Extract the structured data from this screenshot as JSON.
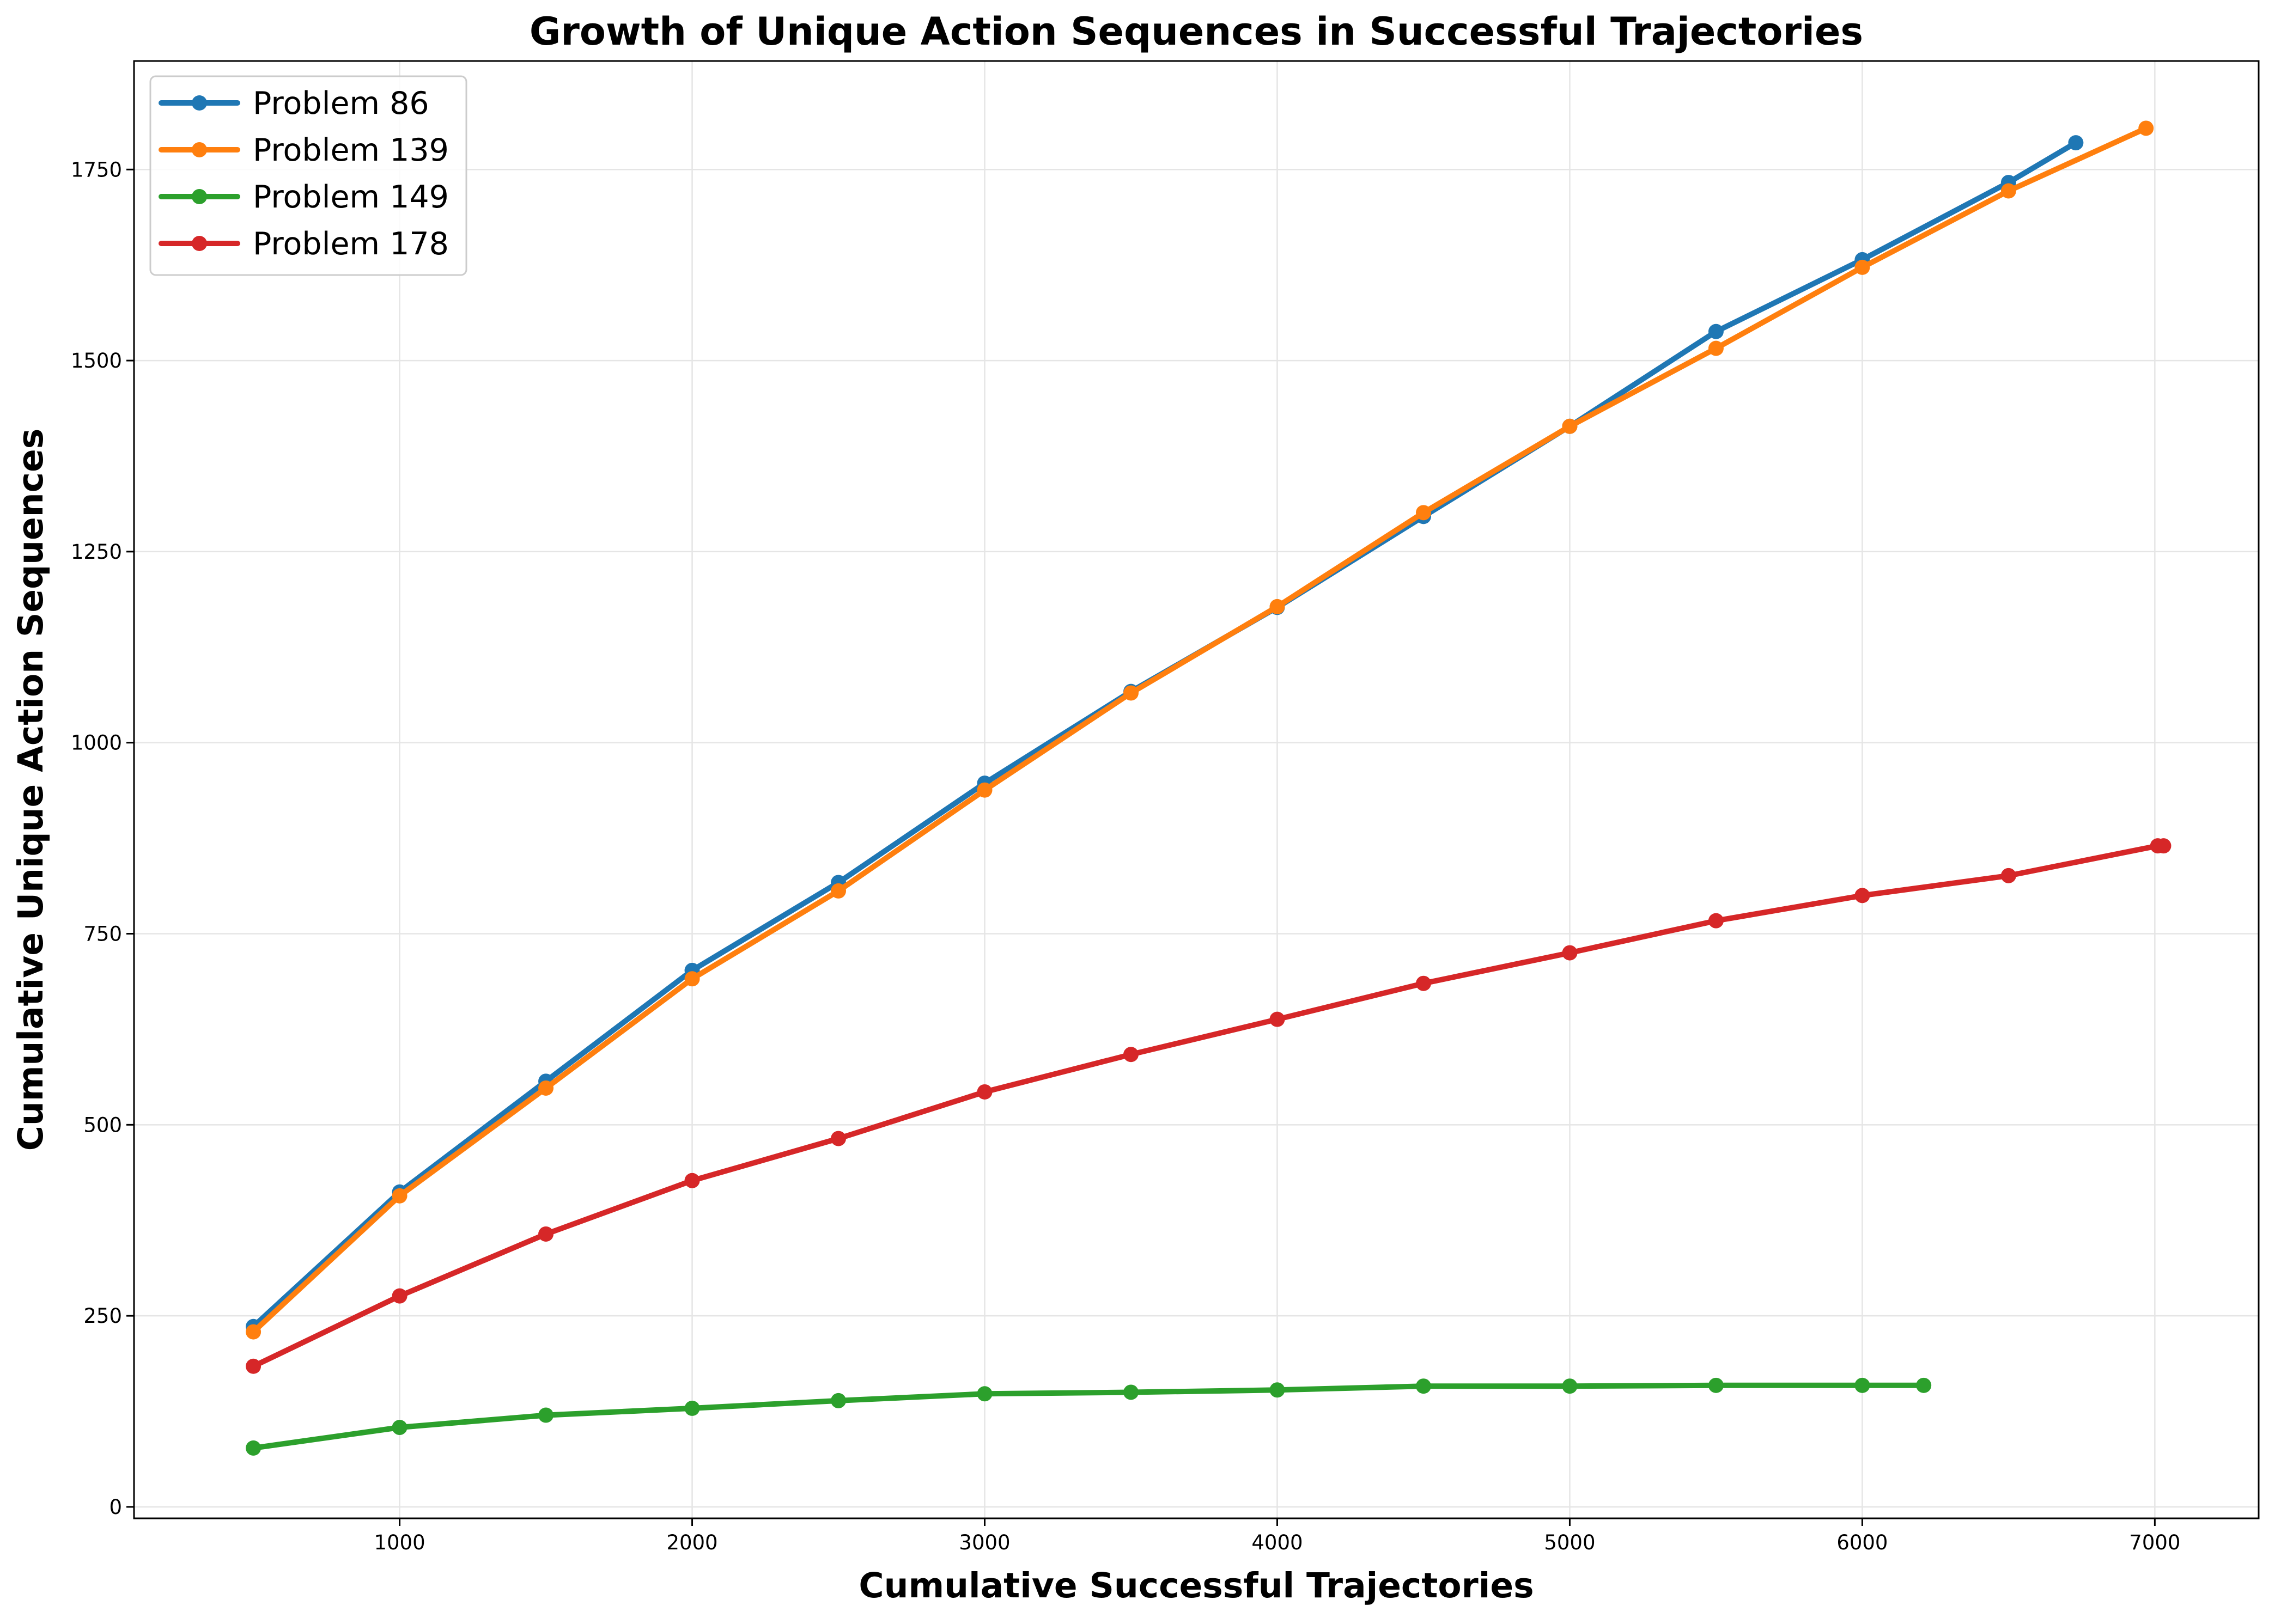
{
  "chart_data": {
    "type": "line",
    "title": "Growth of Unique Action Sequences in Successful Trajectories",
    "xlabel": "Cumulative Successful Trajectories",
    "ylabel": "Cumulative Unique Action Sequences",
    "xlim": [
      92,
      7355
    ],
    "ylim": [
      -15,
      1892
    ],
    "x_ticks": [
      1000,
      2000,
      3000,
      4000,
      5000,
      6000,
      7000
    ],
    "y_ticks": [
      0,
      250,
      500,
      750,
      1000,
      1250,
      1500,
      1750
    ],
    "grid": true,
    "legend_position": "upper left",
    "series": [
      {
        "name": "Problem 86",
        "color": "#1f77b4",
        "x": [
          500,
          1000,
          1500,
          2000,
          2500,
          3000,
          3500,
          4000,
          4500,
          5000,
          5500,
          6000,
          6500,
          6730
        ],
        "y": [
          236,
          412,
          557,
          702,
          817,
          947,
          1067,
          1177,
          1296,
          1414,
          1538,
          1632,
          1733,
          1785
        ]
      },
      {
        "name": "Problem 139",
        "color": "#ff7f0e",
        "x": [
          500,
          1000,
          1500,
          2000,
          2500,
          3000,
          3500,
          4000,
          4500,
          5000,
          5500,
          6000,
          6500,
          6970
        ],
        "y": [
          229,
          407,
          548,
          691,
          806,
          938,
          1065,
          1178,
          1301,
          1414,
          1516,
          1622,
          1722,
          1804
        ]
      },
      {
        "name": "Problem 149",
        "color": "#2ca02c",
        "x": [
          500,
          1000,
          1500,
          2000,
          2500,
          3000,
          3500,
          4000,
          4500,
          5000,
          5500,
          6000,
          6210
        ],
        "y": [
          77,
          104,
          120,
          129,
          139,
          148,
          150,
          153,
          158,
          158,
          159,
          159,
          159
        ]
      },
      {
        "name": "Problem 178",
        "color": "#d62728",
        "x": [
          500,
          1000,
          1500,
          2000,
          2500,
          3000,
          3500,
          4000,
          4500,
          5000,
          5500,
          6000,
          6500,
          7010,
          7030
        ],
        "y": [
          184,
          276,
          357,
          427,
          482,
          543,
          592,
          638,
          685,
          725,
          767,
          800,
          826,
          865,
          865
        ]
      }
    ]
  }
}
